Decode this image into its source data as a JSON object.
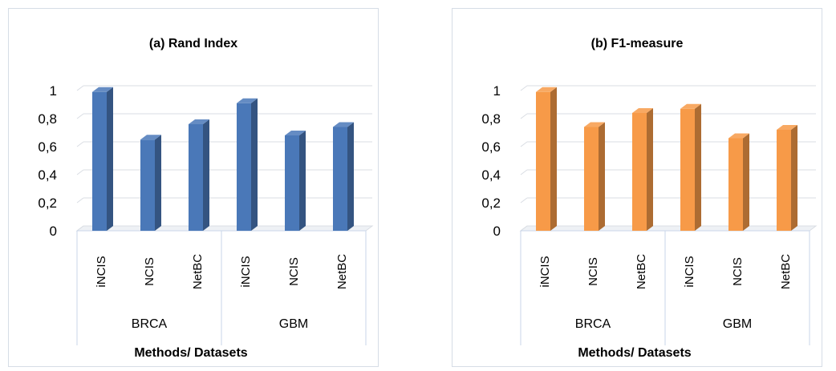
{
  "chart_data": [
    {
      "type": "bar",
      "title": "(a) Rand Index",
      "xlabel": "Methods/ Datasets",
      "ylabel": "",
      "ylim": [
        0,
        1
      ],
      "yticks": [
        "0",
        "0,2",
        "0,4",
        "0,6",
        "0,8",
        "1"
      ],
      "grid": true,
      "color": "#4a78b8",
      "groups": [
        {
          "name": "BRCA",
          "categories": [
            "iNCIS",
            "NCIS",
            "NetBC"
          ],
          "values": [
            0.99,
            0.65,
            0.76
          ]
        },
        {
          "name": "GBM",
          "categories": [
            "iNCIS",
            "NCIS",
            "NetBC"
          ],
          "values": [
            0.91,
            0.68,
            0.74
          ]
        }
      ]
    },
    {
      "type": "bar",
      "title": "(b) F1-measure",
      "xlabel": "Methods/ Datasets",
      "ylabel": "",
      "ylim": [
        0,
        1
      ],
      "yticks": [
        "0",
        "0,2",
        "0,4",
        "0,6",
        "0,8",
        "1"
      ],
      "grid": true,
      "color": "#f79a48",
      "groups": [
        {
          "name": "BRCA",
          "categories": [
            "iNCIS",
            "NCIS",
            "NetBC"
          ],
          "values": [
            0.99,
            0.74,
            0.84
          ]
        },
        {
          "name": "GBM",
          "categories": [
            "iNCIS",
            "NCIS",
            "NetBC"
          ],
          "values": [
            0.87,
            0.66,
            0.72
          ]
        }
      ]
    }
  ]
}
